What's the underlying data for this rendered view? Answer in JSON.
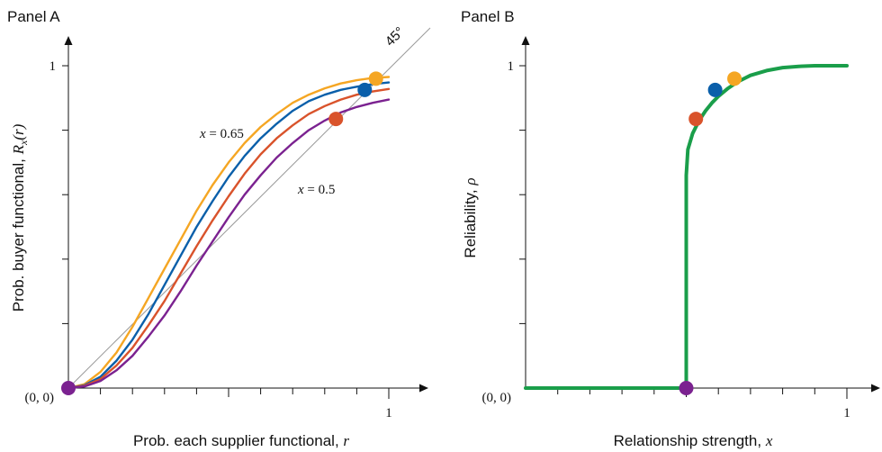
{
  "chart_data": [
    {
      "panel_label": "Panel A",
      "type": "line",
      "xlabel": "Prob. each supplier functional,",
      "xlabel_var": "r",
      "ylabel": "Prob. buyer functional,",
      "ylabel_var": "R",
      "ylabel_sub": "x",
      "ylabel_arg": "(r)",
      "origin_label": "(0, 0)",
      "x_tick_label": "1",
      "y_tick_label": "1",
      "xlim": [
        0,
        1
      ],
      "ylim": [
        0,
        1
      ],
      "x_minor_ticks": 10,
      "y_minor_ticks": 5,
      "diagonal_label": "45°",
      "annotations": [
        {
          "var": "x",
          "text": " = 0.65",
          "r": 0.53,
          "y": 0.85
        },
        {
          "var": "x",
          "text": " = 0.5",
          "r": 0.78,
          "y": 0.62
        }
      ],
      "series": [
        {
          "color": "#F5A623",
          "values": [
            [
              0,
              0
            ],
            [
              0.05,
              0.012
            ],
            [
              0.1,
              0.05
            ],
            [
              0.15,
              0.11
            ],
            [
              0.2,
              0.19
            ],
            [
              0.25,
              0.28
            ],
            [
              0.3,
              0.37
            ],
            [
              0.35,
              0.46
            ],
            [
              0.4,
              0.55
            ],
            [
              0.45,
              0.63
            ],
            [
              0.5,
              0.7
            ],
            [
              0.55,
              0.76
            ],
            [
              0.6,
              0.81
            ],
            [
              0.65,
              0.85
            ],
            [
              0.7,
              0.885
            ],
            [
              0.75,
              0.91
            ],
            [
              0.8,
              0.93
            ],
            [
              0.85,
              0.945
            ],
            [
              0.9,
              0.955
            ],
            [
              0.95,
              0.962
            ],
            [
              1.0,
              0.965
            ]
          ]
        },
        {
          "color": "#0A5FAA",
          "values": [
            [
              0,
              0
            ],
            [
              0.05,
              0.009
            ],
            [
              0.1,
              0.035
            ],
            [
              0.15,
              0.085
            ],
            [
              0.2,
              0.15
            ],
            [
              0.25,
              0.23
            ],
            [
              0.3,
              0.32
            ],
            [
              0.35,
              0.41
            ],
            [
              0.4,
              0.5
            ],
            [
              0.45,
              0.58
            ],
            [
              0.5,
              0.655
            ],
            [
              0.55,
              0.72
            ],
            [
              0.6,
              0.775
            ],
            [
              0.65,
              0.82
            ],
            [
              0.7,
              0.86
            ],
            [
              0.75,
              0.89
            ],
            [
              0.8,
              0.91
            ],
            [
              0.85,
              0.925
            ],
            [
              0.9,
              0.935
            ],
            [
              0.95,
              0.943
            ],
            [
              1.0,
              0.948
            ]
          ]
        },
        {
          "color": "#D9532B",
          "values": [
            [
              0,
              0
            ],
            [
              0.05,
              0.007
            ],
            [
              0.1,
              0.028
            ],
            [
              0.15,
              0.07
            ],
            [
              0.2,
              0.125
            ],
            [
              0.25,
              0.195
            ],
            [
              0.3,
              0.27
            ],
            [
              0.35,
              0.355
            ],
            [
              0.4,
              0.44
            ],
            [
              0.45,
              0.52
            ],
            [
              0.5,
              0.595
            ],
            [
              0.55,
              0.665
            ],
            [
              0.6,
              0.725
            ],
            [
              0.65,
              0.775
            ],
            [
              0.7,
              0.815
            ],
            [
              0.75,
              0.85
            ],
            [
              0.8,
              0.875
            ],
            [
              0.85,
              0.895
            ],
            [
              0.9,
              0.91
            ],
            [
              0.95,
              0.92
            ],
            [
              1.0,
              0.928
            ]
          ]
        },
        {
          "color": "#7B2290",
          "values": [
            [
              0,
              0
            ],
            [
              0.05,
              0.005
            ],
            [
              0.1,
              0.022
            ],
            [
              0.15,
              0.055
            ],
            [
              0.2,
              0.1
            ],
            [
              0.25,
              0.16
            ],
            [
              0.3,
              0.225
            ],
            [
              0.35,
              0.3
            ],
            [
              0.4,
              0.38
            ],
            [
              0.45,
              0.455
            ],
            [
              0.5,
              0.53
            ],
            [
              0.55,
              0.6
            ],
            [
              0.6,
              0.66
            ],
            [
              0.65,
              0.715
            ],
            [
              0.7,
              0.76
            ],
            [
              0.75,
              0.8
            ],
            [
              0.8,
              0.83
            ],
            [
              0.85,
              0.855
            ],
            [
              0.9,
              0.872
            ],
            [
              0.95,
              0.885
            ],
            [
              1.0,
              0.895
            ]
          ]
        }
      ],
      "points": [
        {
          "r": 0.0,
          "y": 0.0,
          "color": "#7B2290"
        },
        {
          "r": 0.835,
          "y": 0.835,
          "color": "#D9532B"
        },
        {
          "r": 0.925,
          "y": 0.925,
          "color": "#0A5FAA"
        },
        {
          "r": 0.96,
          "y": 0.96,
          "color": "#F5A623"
        }
      ]
    },
    {
      "panel_label": "Panel B",
      "type": "line",
      "xlabel": "Relationship strength,",
      "xlabel_var": "x",
      "ylabel": "Reliability,",
      "ylabel_var": "ρ",
      "origin_label": "(0, 0)",
      "x_tick_label": "1",
      "y_tick_label": "1",
      "xlim": [
        0,
        1
      ],
      "ylim": [
        0,
        1
      ],
      "x_minor_ticks": 10,
      "y_minor_ticks": 5,
      "series": [
        {
          "color": "#1A9E4A",
          "values": [
            [
              0,
              0
            ],
            [
              0.5,
              0
            ],
            [
              0.5,
              0.66
            ],
            [
              0.505,
              0.74
            ],
            [
              0.52,
              0.79
            ],
            [
              0.54,
              0.83
            ],
            [
              0.56,
              0.86
            ],
            [
              0.58,
              0.885
            ],
            [
              0.6,
              0.905
            ],
            [
              0.63,
              0.93
            ],
            [
              0.66,
              0.95
            ],
            [
              0.7,
              0.97
            ],
            [
              0.75,
              0.985
            ],
            [
              0.8,
              0.994
            ],
            [
              0.85,
              0.998
            ],
            [
              0.9,
              1.0
            ],
            [
              1.0,
              1.0
            ]
          ]
        }
      ],
      "points": [
        {
          "x": 0.5,
          "y": 0.0,
          "color": "#7B2290"
        },
        {
          "x": 0.53,
          "y": 0.835,
          "color": "#D9532B"
        },
        {
          "x": 0.59,
          "y": 0.925,
          "color": "#0A5FAA"
        },
        {
          "x": 0.65,
          "y": 0.96,
          "color": "#F5A623"
        }
      ]
    }
  ]
}
